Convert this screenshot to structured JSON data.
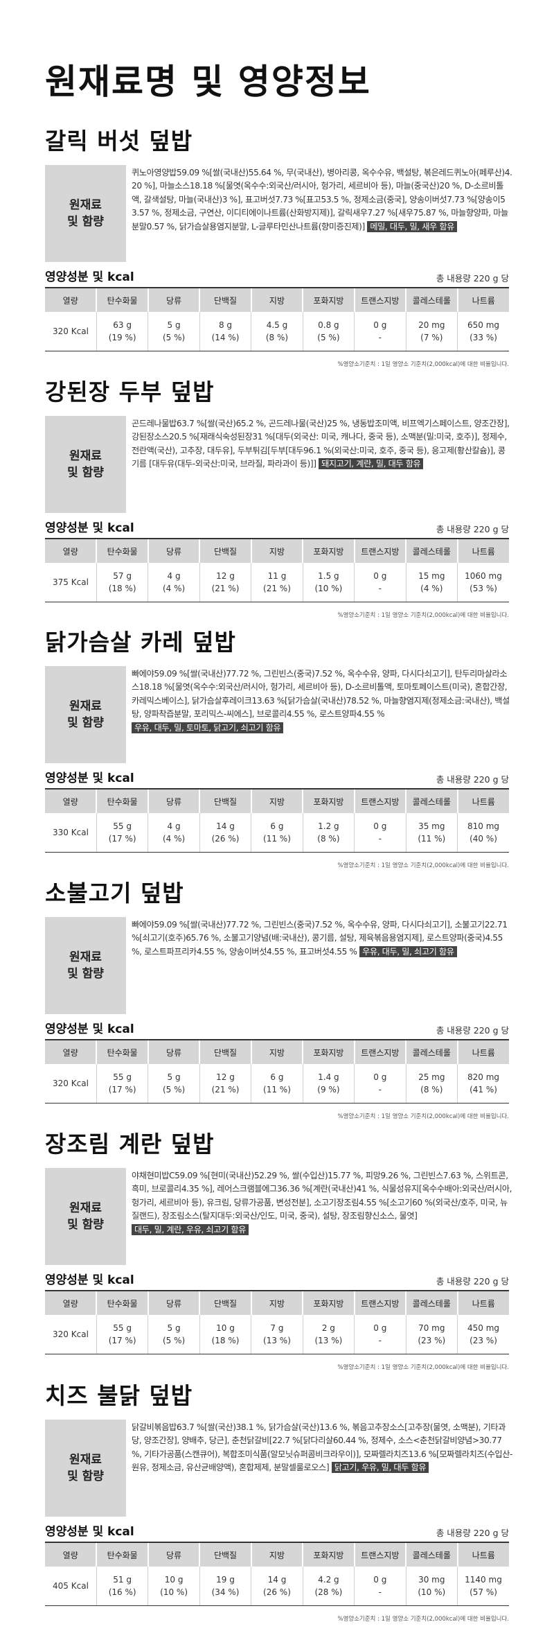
{
  "page_title": "원재료명 및 영양정보",
  "labels": {
    "ingredients_line1": "원재료",
    "ingredients_line2": "및 함량",
    "nutrition_title": "영양성분 및 kcal",
    "total": "총 내용량 220 g 당",
    "footnote": "%영양소기준치 : 1일 영양소 기준치(2,000kcal)에 대한 비율입니다."
  },
  "table_headers": [
    "열량",
    "탄수화물",
    "당류",
    "단백질",
    "지방",
    "포화지방",
    "트랜스지방",
    "콜레스테롤",
    "나트륨"
  ],
  "products": [
    {
      "name": "갈릭 버섯 덮밥",
      "ingredients": "퀴노아영양밥59.09 %[쌀(국내산)55.64 %, 무(국내산), 병아리콩, 옥수수유, 백설탕, 볶은레드퀴노아(페루산)4.20 %], 마늘소스18.18 %[물엿(옥수수:외국산/러시아, 헝가리, 세르비아 등), 마늘(중국산)20 %, D-소르비톨액, 갈색설탕, 마늘(국내산)3 %], 표고버섯7.73 %[표고53.5 %, 정제소금(중국], 양송이버섯7.73 %[양송이53.57 %, 정제소금, 구연산, 이디티에이나트륨(산화방지제)], 갈릭새우7.27 %[새우75.87 %, 마늘향양파, 마늘분말0.57 %, 닭가슴살용염지분말, L-글루타민산나트륨(향미증진제)]",
      "allergens": "메밀, 대두, 밀, 새우 함유",
      "values": [
        {
          "top": "320 Kcal",
          "bottom": ""
        },
        {
          "top": "63 g",
          "bottom": "(19 %)"
        },
        {
          "top": "5 g",
          "bottom": "(5 %)"
        },
        {
          "top": "8 g",
          "bottom": "(14 %)"
        },
        {
          "top": "4.5 g",
          "bottom": "(8 %)"
        },
        {
          "top": "0.8 g",
          "bottom": "(5 %)"
        },
        {
          "top": "0 g",
          "bottom": "-"
        },
        {
          "top": "20 mg",
          "bottom": "(7 %)"
        },
        {
          "top": "650 mg",
          "bottom": "(33 %)"
        }
      ]
    },
    {
      "name": "강된장 두부 덮밥",
      "ingredients": "곤드레나물밥63.7 %[쌀(국산)65.2 %, 곤드레나물(국산)25 %, 냉동밥조미액, 비프엑기스페이스트, 양조간장], 강된장소스20.5 %[재래식숙성된장31 %[대두(외국산: 미국, 캐나다, 중국 등), 소맥분(밀:미국, 호주)], 정제수, 전란액(국산), 고추장, 대두유], 두부튀김[두부[대두96.1 %(외국산:미국, 호주, 중국 등), 응고제(황산칼슘)], 콩기름 [대두유(대두-외국산:미국, 브라질, 파라과이 등)]]",
      "allergens": "돼지고기, 계란, 밀, 대두 함유",
      "values": [
        {
          "top": "375 Kcal",
          "bottom": ""
        },
        {
          "top": "57 g",
          "bottom": "(18 %)"
        },
        {
          "top": "4 g",
          "bottom": "(4 %)"
        },
        {
          "top": "12 g",
          "bottom": "(21 %)"
        },
        {
          "top": "11 g",
          "bottom": "(21 %)"
        },
        {
          "top": "1.5 g",
          "bottom": "(10 %)"
        },
        {
          "top": "0 g",
          "bottom": "-"
        },
        {
          "top": "15 mg",
          "bottom": "(4 %)"
        },
        {
          "top": "1060 mg",
          "bottom": "(53 %)"
        }
      ]
    },
    {
      "name": "닭가슴살 카레 덮밥",
      "ingredients": "빠에야59.09 %[쌀(국내산)77.72 %, 그린빈스(중국)7.52 %, 옥수수유, 양파, 다시다쇠고기], 탄두리마살라소스18.18 %[물엿(옥수수:외국산/러시아, 헝가리, 세르비아 등), D-소르비톨액, 토마토페이스트(미국), 혼합간장, 카레믹스베이스], 닭가슴살후레이크13.63 %[닭가슴살(국내산)78.52 %, 마늘향염지제(정제소금:국내산), 백설탕, 양파착즙분말, 포리믹스-씨에스], 브로콜리4.55 %, 로스트양파4.55 %",
      "allergens": "우유, 대두, 밀, 토마토, 닭고기, 쇠고기 함유",
      "values": [
        {
          "top": "330 Kcal",
          "bottom": ""
        },
        {
          "top": "55 g",
          "bottom": "(17 %)"
        },
        {
          "top": "4 g",
          "bottom": "(4 %)"
        },
        {
          "top": "14 g",
          "bottom": "(26 %)"
        },
        {
          "top": "6 g",
          "bottom": "(11 %)"
        },
        {
          "top": "1.2 g",
          "bottom": "(8 %)"
        },
        {
          "top": "0 g",
          "bottom": "-"
        },
        {
          "top": "35 mg",
          "bottom": "(11 %)"
        },
        {
          "top": "810 mg",
          "bottom": "(40 %)"
        }
      ]
    },
    {
      "name": "소불고기 덮밥",
      "ingredients": "빠에야59.09 %[쌀(국내산)77.72 %, 그린빈스(중국)7.52 %, 옥수수유, 양파, 다시다쇠고기], 소불고기22.71 %[쇠고기(호주)65.76 %, 소불고기양념(배:국내산), 콩기름, 설탕, 제육볶음용염지제], 로스트양파(중국)4.55 %, 로스트파프리카4.55 %, 양송이버섯4.55 %, 표고버섯4.55 %",
      "allergens": "우유, 대두, 밀, 쇠고기 함유",
      "values": [
        {
          "top": "320 Kcal",
          "bottom": ""
        },
        {
          "top": "55 g",
          "bottom": "(17 %)"
        },
        {
          "top": "5 g",
          "bottom": "(5 %)"
        },
        {
          "top": "12 g",
          "bottom": "(21 %)"
        },
        {
          "top": "6 g",
          "bottom": "(11 %)"
        },
        {
          "top": "1.4 g",
          "bottom": "(9 %)"
        },
        {
          "top": "0 g",
          "bottom": "-"
        },
        {
          "top": "25 mg",
          "bottom": "(8 %)"
        },
        {
          "top": "820 mg",
          "bottom": "(41 %)"
        }
      ]
    },
    {
      "name": "장조림 계란 덮밥",
      "ingredients": "야채현미밥C59.09 %[현미(국내산)52.29 %, 쌀(수입산)15.77 %, 피망9.26 %, 그린빈스7.63 %, 스위트콘, 흑미, 브로콜리4.35 %], 레어스크램블에그36.36 %[계란(국내산)41 %, 식물성유지[옥수수배아:외국산/러시아, 헝가리, 세르비아 등), 유크림, 당류가공품, 변성전분], 소고기장조림4.55 %[소고기60 %(외국산/호주, 미국, 뉴질랜드), 장조림소스(탈지대두:외국산/인도, 미국, 중국), 설탕, 장조림향신소스, 물엿]",
      "allergens": "대두, 밀, 계란, 우유, 쇠고기 함유",
      "values": [
        {
          "top": "320 Kcal",
          "bottom": ""
        },
        {
          "top": "55 g",
          "bottom": "(17 %)"
        },
        {
          "top": "5 g",
          "bottom": "(5 %)"
        },
        {
          "top": "10 g",
          "bottom": "(18 %)"
        },
        {
          "top": "7 g",
          "bottom": "(13 %)"
        },
        {
          "top": "2 g",
          "bottom": "(13 %)"
        },
        {
          "top": "0 g",
          "bottom": "-"
        },
        {
          "top": "70 mg",
          "bottom": "(23 %)"
        },
        {
          "top": "450 mg",
          "bottom": "(23 %)"
        }
      ]
    },
    {
      "name": "치즈 불닭 덮밥",
      "ingredients": "닭갈비볶음밥63.7 %[쌀(국산)38.1 %, 닭가슴살(국산)13.6 %, 볶음고추장소스[고추장(물엿, 소맥분), 기타과당, 양조간장], 양배추, 당근], 춘천닭갈비[22.7 %[닭다리살60.44 %, 정제수, 소스<춘천닭갈비양념>30.77 %, 기타가공품(스캔큐어), 복합조미식품(알모닛슈퍼콤비크라우이)], 모짜렐라치즈13.6 %[모짜렐라치즈(수입산-원유, 정제소금, 유산균배양액), 혼합제제, 분말셀룰로오스]",
      "allergens": "닭고기, 우유, 밀, 대두 함유",
      "values": [
        {
          "top": "405 Kcal",
          "bottom": ""
        },
        {
          "top": "51 g",
          "bottom": "(16 %)"
        },
        {
          "top": "10 g",
          "bottom": "(10 %)"
        },
        {
          "top": "19 g",
          "bottom": "(34 %)"
        },
        {
          "top": "14 g",
          "bottom": "(26 %)"
        },
        {
          "top": "4.2 g",
          "bottom": "(28 %)"
        },
        {
          "top": "0 g",
          "bottom": "-"
        },
        {
          "top": "30 mg",
          "bottom": "(10 %)"
        },
        {
          "top": "1140 mg",
          "bottom": "(57 %)"
        }
      ]
    }
  ]
}
